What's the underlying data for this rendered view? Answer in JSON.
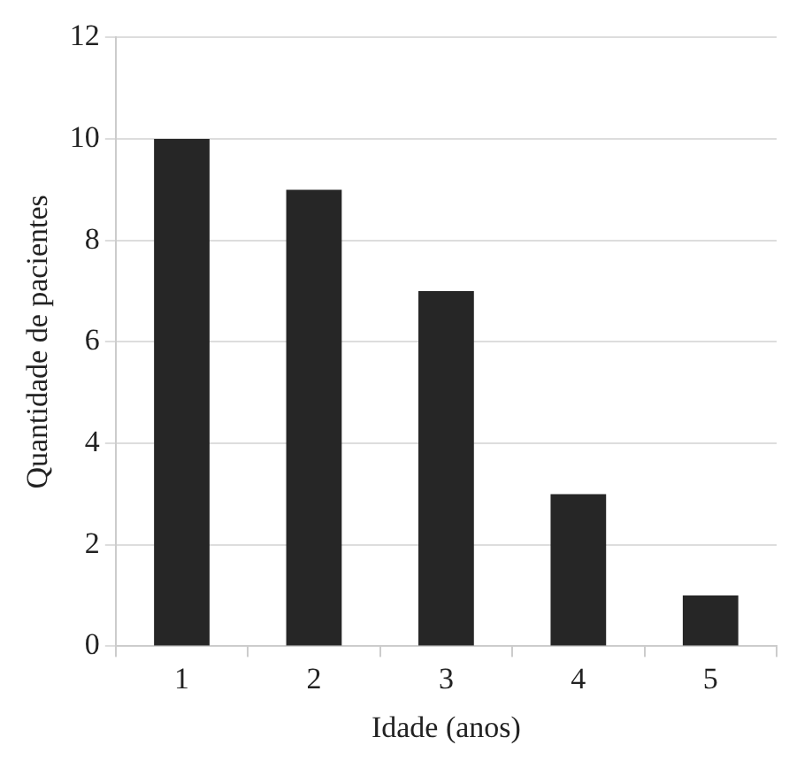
{
  "chart_data": {
    "type": "bar",
    "xlabel": "Idade (anos)",
    "ylabel": "Quantidade de pacientes",
    "categories": [
      "1",
      "2",
      "3",
      "4",
      "5"
    ],
    "values": [
      10,
      9,
      7,
      3,
      1
    ],
    "color": "#262626",
    "ylim": [
      0,
      12
    ],
    "yticks": [
      0,
      2,
      4,
      6,
      8,
      10,
      12
    ],
    "grid": "y",
    "legend": false
  }
}
